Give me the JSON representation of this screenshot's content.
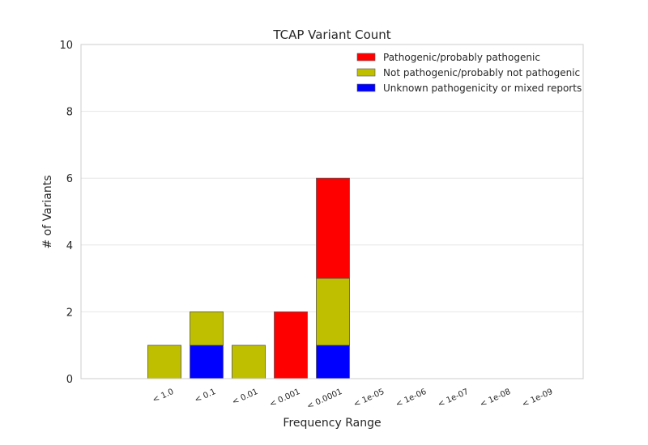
{
  "chart_data": {
    "type": "bar",
    "stacked": true,
    "title": "TCAP Variant Count",
    "xlabel": "Frequency Range",
    "ylabel": "# of Variants",
    "ylim": [
      0,
      10
    ],
    "yticks": [
      0,
      2,
      4,
      6,
      8,
      10
    ],
    "grid": "horizontal",
    "legend_position": "top-right",
    "categories": [
      "< 1.0",
      "< 0.1",
      "< 0.01",
      "< 0.001",
      "< 0.0001",
      "< 1e-05",
      "< 1e-06",
      "< 1e-07",
      "< 1e-08",
      "< 1e-09"
    ],
    "series": [
      {
        "name": "Unknown pathogenicity or mixed reports",
        "color": "#0000ff",
        "values": [
          0,
          1,
          0,
          0,
          1,
          0,
          0,
          0,
          0,
          0
        ]
      },
      {
        "name": "Not pathogenic/probably not pathogenic",
        "color": "#bfbf00",
        "values": [
          1,
          1,
          1,
          0,
          2,
          0,
          0,
          0,
          0,
          0
        ]
      },
      {
        "name": "Pathogenic/probably pathogenic",
        "color": "#ff0000",
        "values": [
          0,
          0,
          0,
          2,
          3,
          0,
          0,
          0,
          0,
          0
        ]
      }
    ],
    "legend_order": [
      "Pathogenic/probably pathogenic",
      "Not pathogenic/probably not pathogenic",
      "Unknown pathogenicity or mixed reports"
    ]
  }
}
